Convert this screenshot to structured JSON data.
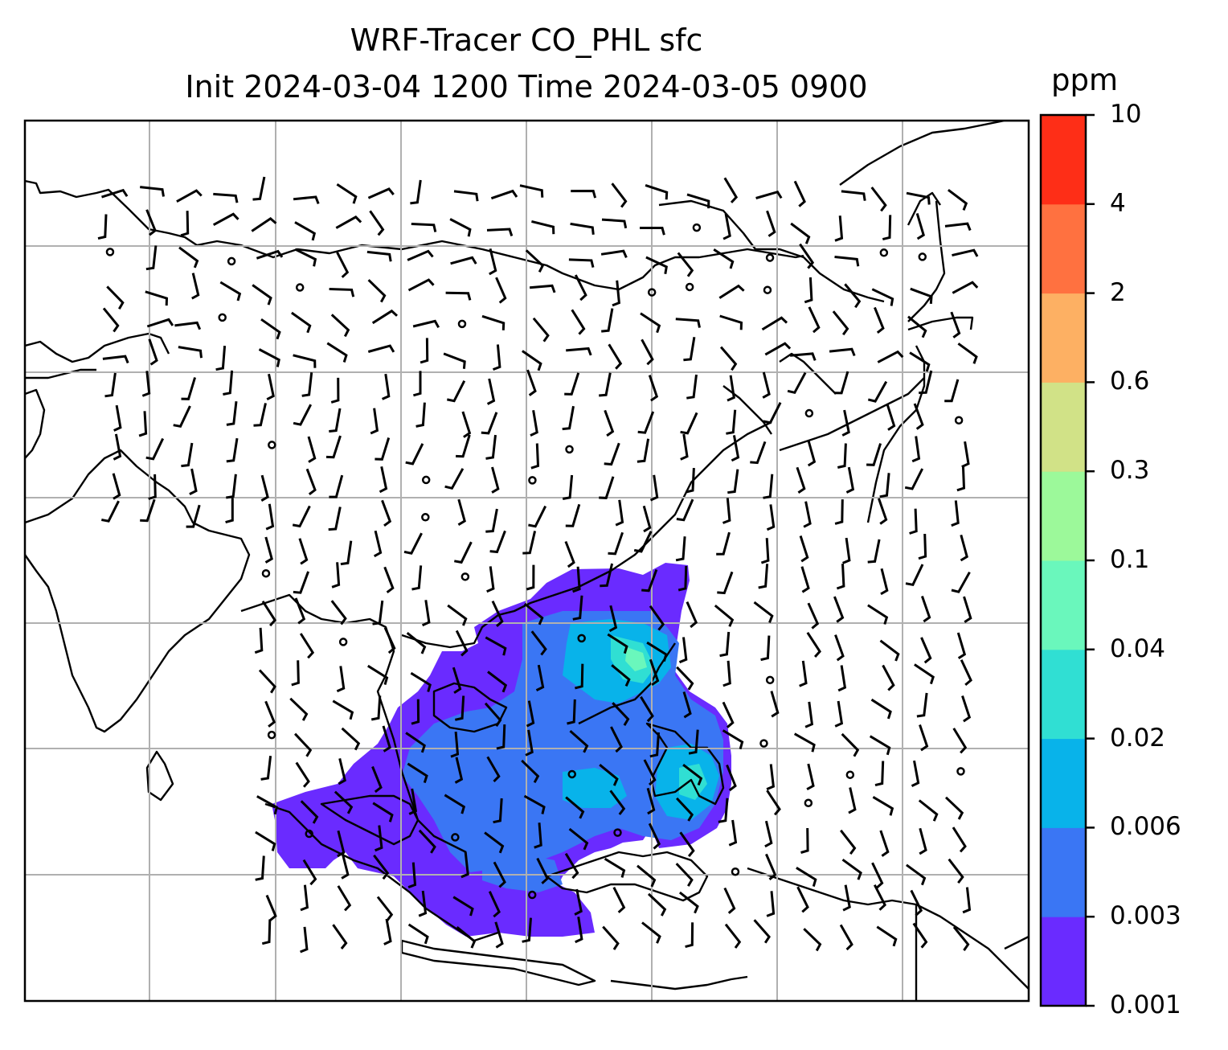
{
  "title": {
    "line1": "WRF-Tracer CO_PHL sfc",
    "line2": "Init 2024-03-04 1200 Time 2024-03-05 0900"
  },
  "colorbar": {
    "units": "ppm",
    "levels": [
      "0.001",
      "0.003",
      "0.006",
      "0.02",
      "0.04",
      "0.1",
      "0.3",
      "0.6",
      "2",
      "4",
      "10"
    ],
    "colors": [
      "#6a2bff",
      "#3a76f4",
      "#08b3ea",
      "#30dfd3",
      "#6af7bc",
      "#9cf99a",
      "#d1e287",
      "#fdb063",
      "#ff7140",
      "#fe2e17"
    ]
  },
  "map": {
    "type": "tracer-concentration-with-wind-barbs",
    "grid": true,
    "coastline_color": "#000000"
  }
}
